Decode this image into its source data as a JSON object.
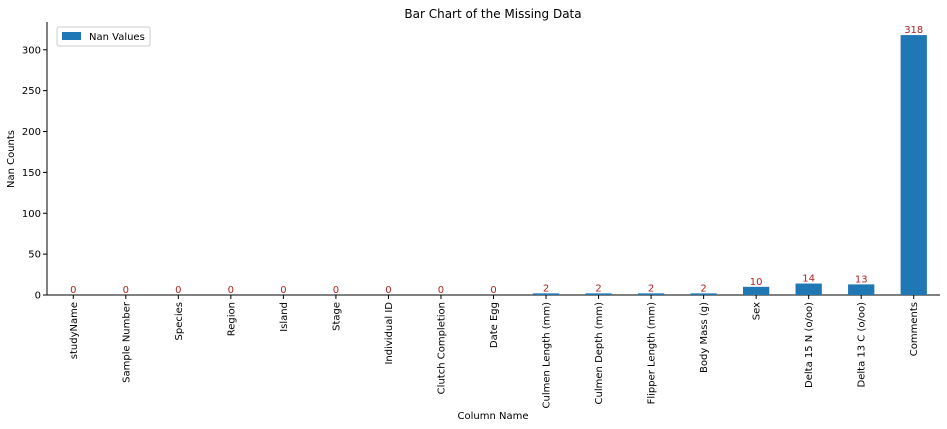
{
  "chart_data": {
    "type": "bar",
    "title": "Bar Chart of the Missing Data",
    "xlabel": "Column Name",
    "ylabel": "Nan Counts",
    "categories": [
      "studyName",
      "Sample Number",
      "Species",
      "Region",
      "Island",
      "Stage",
      "Individual ID",
      "Clutch Completion",
      "Date Egg",
      "Culmen Length (mm)",
      "Culmen Depth (mm)",
      "Flipper Length (mm)",
      "Body Mass (g)",
      "Sex",
      "Delta 15 N (o/oo)",
      "Delta 13 C (o/oo)",
      "Comments"
    ],
    "series": [
      {
        "name": "Nan Values",
        "values": [
          0,
          0,
          0,
          0,
          0,
          0,
          0,
          0,
          0,
          2,
          2,
          2,
          2,
          10,
          14,
          13,
          318
        ]
      }
    ],
    "data_labels": [
      "0",
      "0",
      "0",
      "0",
      "0",
      "0",
      "0",
      "0",
      "0",
      "2",
      "2",
      "2",
      "2",
      "10",
      "14",
      "13",
      "318"
    ],
    "yticks": [
      0,
      50,
      100,
      150,
      200,
      250,
      300
    ],
    "ylim": [
      0,
      334
    ],
    "grid": false,
    "legend_position": "top-left",
    "bar_color": "#1f77b4",
    "label_color": "#b22222"
  }
}
